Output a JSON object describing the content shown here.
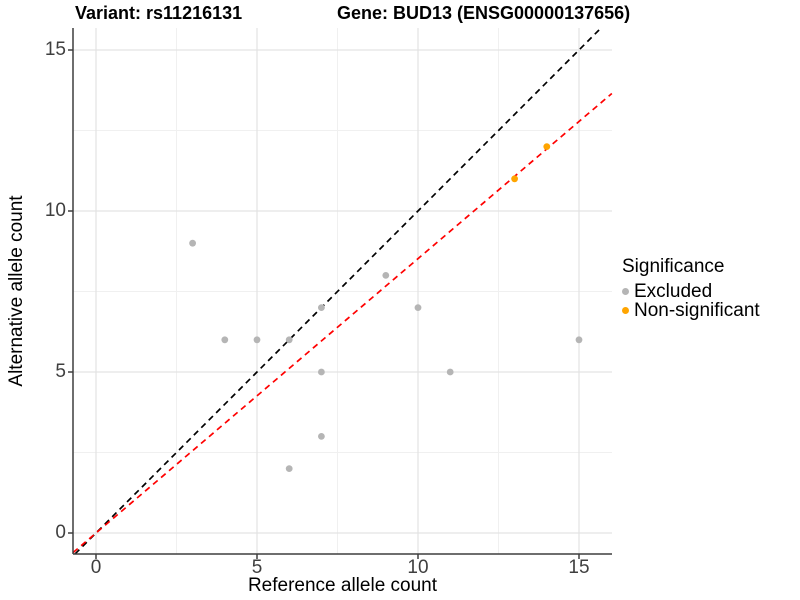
{
  "titles": {
    "variant": "Variant: rs11216131",
    "gene": "Gene: BUD13 (ENSG00000137656)"
  },
  "axes": {
    "x": {
      "label": "Reference allele count"
    },
    "y": {
      "label": "Alternative allele count"
    }
  },
  "legend": {
    "title": "Significance",
    "items": [
      {
        "label": "Excluded",
        "color": "#b5b5b5"
      },
      {
        "label": "Non-significant",
        "color": "#ffa500"
      }
    ]
  },
  "chart_data": {
    "type": "scatter",
    "title": "Variant: rs11216131 — Gene: BUD13 (ENSG00000137656)",
    "xlabel": "Reference allele count",
    "ylabel": "Alternative allele count",
    "xlim": [
      -0.71,
      16.02
    ],
    "ylim": [
      -0.65,
      15.68
    ],
    "x_major_ticks": [
      0,
      5,
      10,
      15
    ],
    "y_major_ticks": [
      0,
      5,
      10,
      15
    ],
    "x_minor_ticks": [
      2.5,
      7.5,
      12.5
    ],
    "y_minor_ticks": [
      2.5,
      7.5,
      12.5
    ],
    "grid": true,
    "legend_position": "right",
    "series": [
      {
        "name": "Excluded",
        "color": "#b5b5b5",
        "points": [
          [
            3,
            9
          ],
          [
            4,
            6
          ],
          [
            5,
            6
          ],
          [
            6,
            2
          ],
          [
            6,
            6
          ],
          [
            7,
            3
          ],
          [
            7,
            5
          ],
          [
            7,
            7
          ],
          [
            9,
            8
          ],
          [
            10,
            7
          ],
          [
            11,
            5
          ],
          [
            15,
            6
          ]
        ]
      },
      {
        "name": "Non-significant",
        "color": "#ffa500",
        "points": [
          [
            13,
            11
          ],
          [
            14,
            12
          ]
        ]
      }
    ],
    "reference_lines": [
      {
        "name": "identity",
        "slope": 1.0,
        "intercept": 0,
        "color": "#000000",
        "style": "dashed"
      },
      {
        "name": "expected-allelic-ratio",
        "slope": 0.852,
        "intercept": 0,
        "color": "#ff0000",
        "style": "dashed"
      }
    ]
  }
}
